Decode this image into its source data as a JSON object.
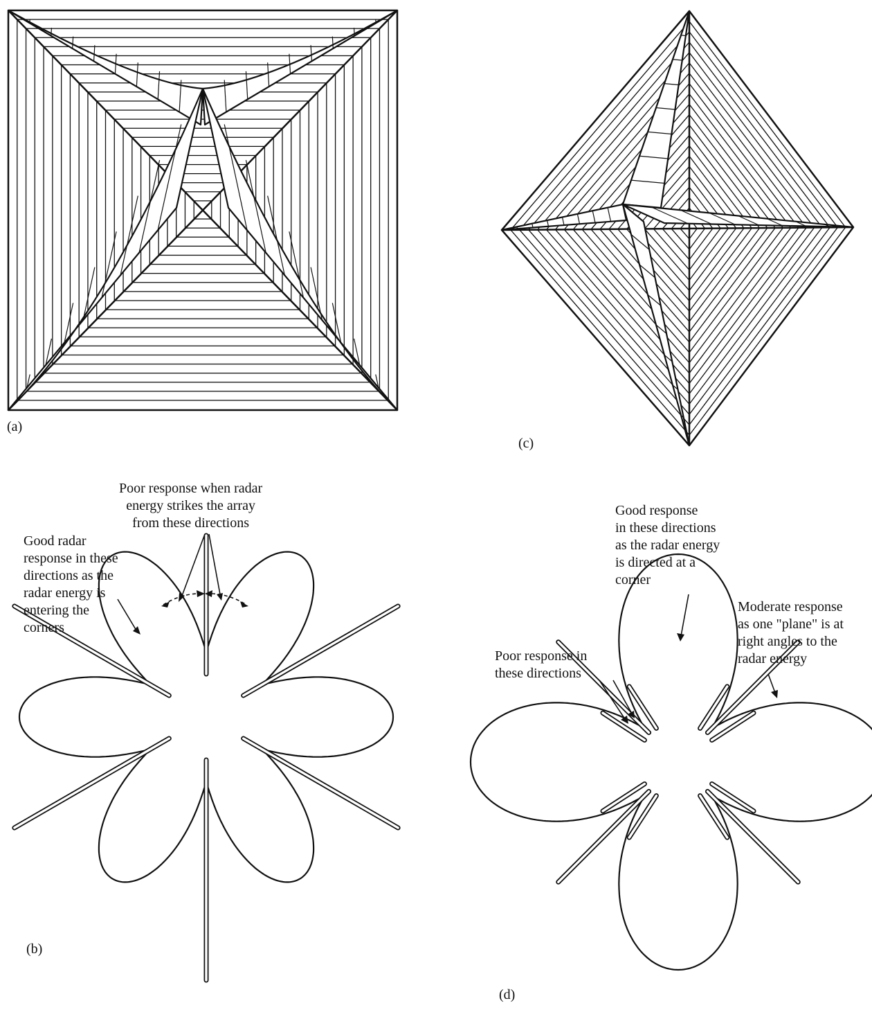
{
  "panels": {
    "a": {
      "label": "(a)"
    },
    "b": {
      "label": "(b)",
      "annotations": {
        "poor": "Poor response when radar\nenergy strikes the array\nfrom these directions",
        "good": "Good radar\nresponse in these\ndirections as the\nradar energy is\nentering the\ncorners"
      }
    },
    "c": {
      "label": "(c)"
    },
    "d": {
      "label": "(d)",
      "annotations": {
        "good": "Good response\nin these directions\nas the radar energy\nis directed at a\ncorner",
        "moderate": "Moderate response\nas one \"plane\" is at\nright angles to the\nradar energy",
        "poor": "Poor response in\nthese directions"
      }
    }
  },
  "colors": {
    "ink": "#111111",
    "paper": "#ffffff"
  }
}
